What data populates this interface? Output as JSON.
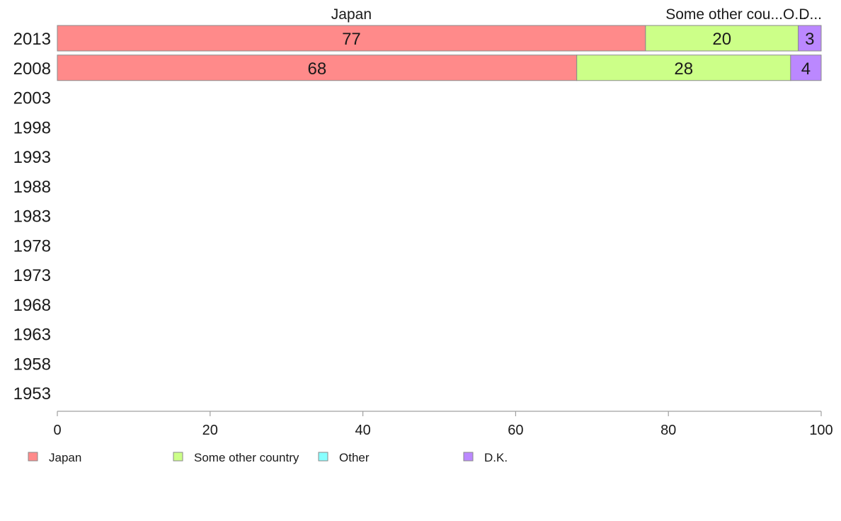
{
  "chart_data": {
    "type": "bar",
    "orientation": "horizontal",
    "stacked": true,
    "categories": [
      "2013",
      "2008",
      "2003",
      "1998",
      "1993",
      "1988",
      "1983",
      "1978",
      "1973",
      "1968",
      "1963",
      "1958",
      "1953"
    ],
    "series": [
      {
        "name": "Japan",
        "color": "#ff8a8a",
        "values": [
          77,
          68,
          null,
          null,
          null,
          null,
          null,
          null,
          null,
          null,
          null,
          null,
          null
        ]
      },
      {
        "name": "Some other country",
        "color": "#ccff88",
        "values": [
          20,
          28,
          null,
          null,
          null,
          null,
          null,
          null,
          null,
          null,
          null,
          null,
          null
        ]
      },
      {
        "name": "Other",
        "color": "#88ffff",
        "values": [
          0,
          0,
          null,
          null,
          null,
          null,
          null,
          null,
          null,
          null,
          null,
          null,
          null
        ]
      },
      {
        "name": "D.K.",
        "color": "#bb88ff",
        "values": [
          3,
          4,
          null,
          null,
          null,
          null,
          null,
          null,
          null,
          null,
          null,
          null,
          null
        ]
      }
    ],
    "column_headers": [
      "Japan",
      "Some other cou...",
      "O...",
      "D..."
    ],
    "xlim": [
      0,
      100
    ],
    "xticks": [
      0,
      20,
      40,
      60,
      80,
      100
    ],
    "legend_position": "bottom-left",
    "grid": false
  }
}
